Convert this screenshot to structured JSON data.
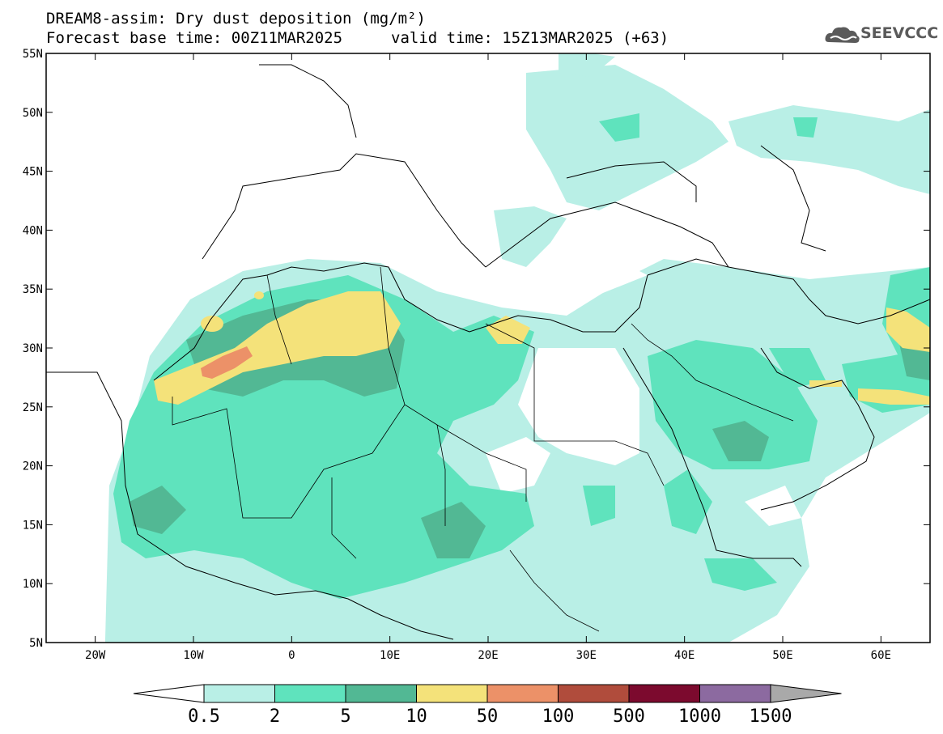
{
  "title": {
    "line1": "DREAM8-assim: Dry dust deposition (mg/m²)",
    "line2_left": "Forecast base time: 00Z11MAR2025",
    "line2_right": "valid time: 15Z13MAR2025 (+63)"
  },
  "logo": {
    "text": "SEEVCCC",
    "icon": "cloud-icon"
  },
  "map": {
    "lon_range": [
      -25,
      65
    ],
    "lat_range": [
      5,
      55
    ],
    "lat_ticks": [
      "55N",
      "50N",
      "45N",
      "40N",
      "35N",
      "30N",
      "25N",
      "20N",
      "15N",
      "10N",
      "5N"
    ],
    "lon_ticks": [
      "20W",
      "10W",
      "0",
      "10E",
      "20E",
      "30E",
      "40E",
      "50E",
      "60E"
    ]
  },
  "colorbar": {
    "labels": [
      "0.5",
      "2",
      "5",
      "10",
      "50",
      "100",
      "500",
      "1000",
      "1500"
    ],
    "colors": [
      "#b9efe6",
      "#5fe3bd",
      "#52b894",
      "#f4e27a",
      "#ec9168",
      "#b04c3c",
      "#7c0a2e",
      "#8c6aa0",
      "#a9a9a9"
    ]
  }
}
